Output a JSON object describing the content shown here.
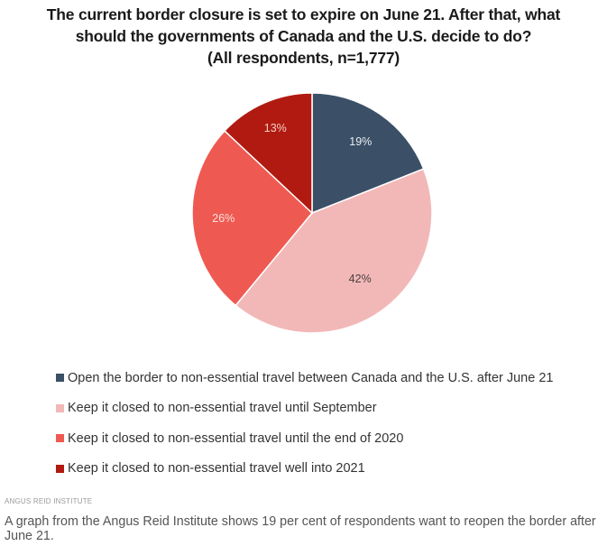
{
  "chart_data": {
    "type": "pie",
    "title_lines": [
      "The current border closure is set to expire on June 21. After that, what",
      "should the governments of Canada and the U.S. decide to do?",
      "(All respondents, n=1,777)"
    ],
    "slices": [
      {
        "label": "Open the border to non-essential travel between Canada and the U.S. after June 21",
        "value": 19,
        "display": "19%",
        "color": "#3b5067",
        "text_color": "#e8ecf0"
      },
      {
        "label": "Keep it closed to non-essential travel until September",
        "value": 42,
        "display": "42%",
        "color": "#f2b8b8",
        "text_color": "#4a4040"
      },
      {
        "label": "Keep it closed to non-essential travel until the end of 2020",
        "value": 26,
        "display": "26%",
        "color": "#ee5a52",
        "text_color": "#fbe0dc"
      },
      {
        "label": "Keep it closed to non-essential travel well into 2021",
        "value": 13,
        "display": "13%",
        "color": "#b01a10",
        "text_color": "#f6cfc8"
      }
    ],
    "start_angle": "12 o'clock",
    "direction": "clockwise",
    "legend_position": "bottom"
  },
  "source": "ANGUS REID INSTITUTE",
  "caption": "A graph from the Angus Reid Institute shows 19 per cent of respondents want to reopen the border after June 21."
}
